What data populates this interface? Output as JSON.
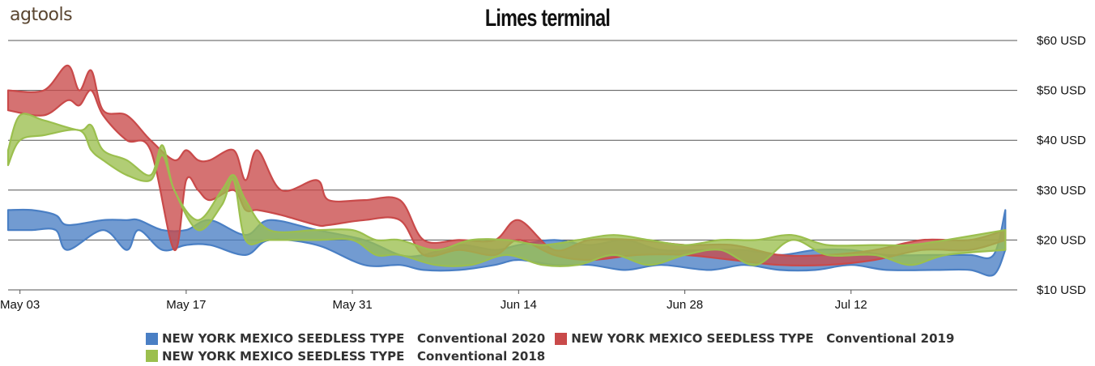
{
  "logo": {
    "prefix": "ag",
    "suffix": "tools"
  },
  "chart_data": {
    "type": "area",
    "title": "Limes terminal",
    "xlabel": "",
    "ylabel": "",
    "x_ticks": [
      "May 03",
      "May 17",
      "May 31",
      "Jun 14",
      "Jun 28",
      "Jul 12"
    ],
    "y_ticks": [
      "$10 USD",
      "$20 USD",
      "$30 USD",
      "$40 USD",
      "$50 USD",
      "$60 USD"
    ],
    "ylim": [
      10,
      60
    ],
    "xlim": [
      "2020-05-02",
      "2020-07-26"
    ],
    "grid": true,
    "legend_position": "bottom",
    "series": [
      {
        "name": "NEW YORK MEXICO SEEDLESS TYPE   Conventional 2020",
        "color": "#4a7fc4",
        "x": [
          "2020-05-02",
          "2020-05-04",
          "2020-05-06",
          "2020-05-07",
          "2020-05-10",
          "2020-05-12",
          "2020-05-13",
          "2020-05-15",
          "2020-05-17",
          "2020-05-19",
          "2020-05-22",
          "2020-05-24",
          "2020-05-28",
          "2020-06-01",
          "2020-06-04",
          "2020-06-06",
          "2020-06-09",
          "2020-06-12",
          "2020-06-14",
          "2020-06-17",
          "2020-06-20",
          "2020-06-23",
          "2020-06-26",
          "2020-06-30",
          "2020-07-03",
          "2020-07-06",
          "2020-07-09",
          "2020-07-12",
          "2020-07-15",
          "2020-07-19",
          "2020-07-22",
          "2020-07-24",
          "2020-07-25"
        ],
        "low": [
          22,
          22,
          22,
          18,
          22,
          18,
          22,
          18,
          19,
          19,
          17,
          20,
          19,
          15,
          15,
          14,
          14,
          15,
          16,
          15,
          15,
          14,
          15,
          14,
          15,
          14,
          14,
          15,
          14,
          14,
          14,
          13,
          18
        ],
        "high": [
          26,
          26,
          25,
          23,
          24,
          24,
          24,
          22,
          22,
          24,
          21,
          24,
          22,
          20,
          17,
          17,
          19,
          18,
          19,
          20,
          19,
          20,
          18,
          18,
          18,
          17,
          18,
          18,
          17,
          17,
          17,
          17,
          26
        ]
      },
      {
        "name": "NEW YORK MEXICO SEEDLESS TYPE   Conventional 2019",
        "color": "#c94a4a",
        "x": [
          "2020-05-02",
          "2020-05-05",
          "2020-05-07",
          "2020-05-08",
          "2020-05-09",
          "2020-05-10",
          "2020-05-12",
          "2020-05-14",
          "2020-05-16",
          "2020-05-17",
          "2020-05-18",
          "2020-05-19",
          "2020-05-21",
          "2020-05-22",
          "2020-05-23",
          "2020-05-25",
          "2020-05-28",
          "2020-05-29",
          "2020-06-01",
          "2020-06-04",
          "2020-06-06",
          "2020-06-09",
          "2020-06-12",
          "2020-06-14",
          "2020-06-17",
          "2020-06-20",
          "2020-06-24",
          "2020-06-28",
          "2020-07-02",
          "2020-07-06",
          "2020-07-10",
          "2020-07-14",
          "2020-07-18",
          "2020-07-22",
          "2020-07-25"
        ],
        "low": [
          46,
          45,
          48,
          47,
          50,
          45,
          40,
          38,
          18,
          32,
          30,
          28,
          30,
          26,
          26,
          25,
          23,
          23,
          24,
          24,
          17,
          18,
          17,
          20,
          17,
          16,
          17,
          17,
          16,
          15,
          15,
          16,
          18,
          18,
          20
        ],
        "high": [
          50,
          50,
          55,
          50,
          54,
          46,
          45,
          40,
          36,
          38,
          36,
          36,
          38,
          32,
          38,
          30,
          32,
          28,
          28,
          28,
          20,
          20,
          20,
          24,
          18,
          20,
          20,
          19,
          19,
          17,
          17,
          18,
          20,
          20,
          22
        ]
      },
      {
        "name": "NEW YORK MEXICO SEEDLESS TYPE   Conventional 2018",
        "color": "#9bbf4e",
        "x": [
          "2020-05-02",
          "2020-05-03",
          "2020-05-05",
          "2020-05-08",
          "2020-05-09",
          "2020-05-10",
          "2020-05-12",
          "2020-05-14",
          "2020-05-15",
          "2020-05-16",
          "2020-05-18",
          "2020-05-20",
          "2020-05-21",
          "2020-05-22",
          "2020-05-24",
          "2020-05-28",
          "2020-05-31",
          "2020-06-02",
          "2020-06-04",
          "2020-06-07",
          "2020-06-10",
          "2020-06-13",
          "2020-06-16",
          "2020-06-19",
          "2020-06-22",
          "2020-06-25",
          "2020-06-28",
          "2020-07-01",
          "2020-07-04",
          "2020-07-07",
          "2020-07-10",
          "2020-07-14",
          "2020-07-17",
          "2020-07-20",
          "2020-07-25"
        ],
        "low": [
          35,
          40,
          41,
          42,
          38,
          36,
          33,
          32,
          37,
          30,
          22,
          27,
          32,
          20,
          20,
          20,
          20,
          17,
          17,
          15,
          15,
          17,
          15,
          15,
          17,
          15,
          17,
          18,
          15,
          20,
          17,
          17,
          15,
          17,
          18
        ],
        "high": [
          38,
          45,
          44,
          42,
          43,
          38,
          36,
          33,
          39,
          30,
          24,
          30,
          33,
          28,
          22,
          22,
          22,
          20,
          20,
          18,
          20,
          20,
          19,
          20,
          21,
          20,
          19,
          20,
          20,
          21,
          19,
          19,
          19,
          20,
          22
        ]
      }
    ]
  }
}
